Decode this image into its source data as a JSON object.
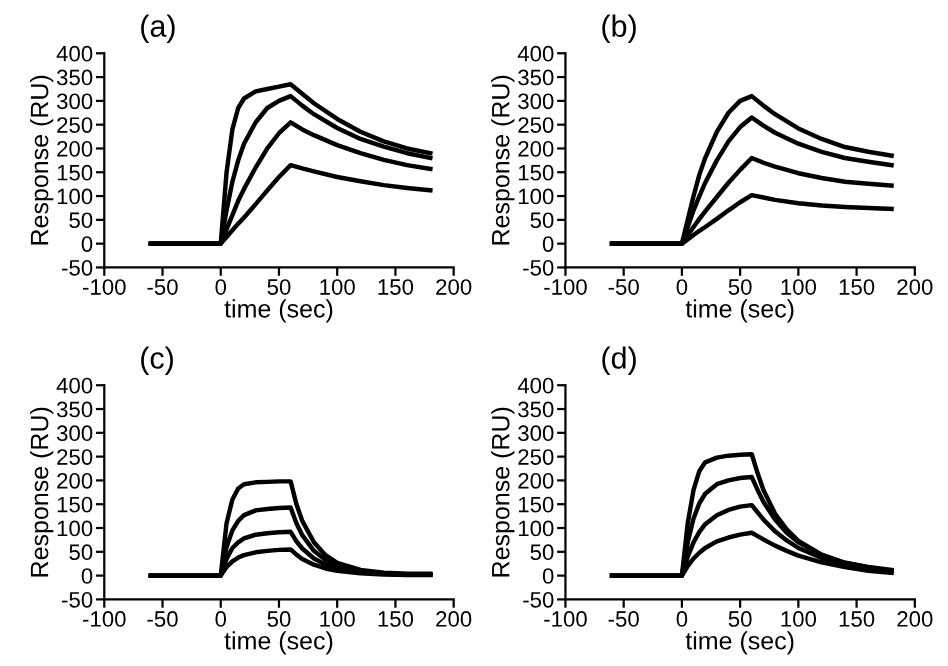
{
  "chart_data": [
    {
      "type": "line",
      "title": "(a)",
      "xlabel": "time (sec)",
      "ylabel": "Response (RU)",
      "xlim": [
        -100,
        200
      ],
      "xticks": [
        -100,
        -50,
        0,
        50,
        100,
        150,
        200
      ],
      "ylim": [
        -50,
        400
      ],
      "yticks": [
        -50,
        0,
        50,
        100,
        150,
        200,
        250,
        300,
        350,
        400
      ],
      "grid": false,
      "legend": false,
      "line_style": "solid",
      "marker": "none",
      "x": [
        -60,
        0,
        5,
        10,
        15,
        20,
        30,
        40,
        50,
        60,
        70,
        80,
        100,
        120,
        140,
        160,
        180
      ],
      "series": [
        {
          "color": "#000000",
          "values": [
            0,
            0,
            150,
            240,
            285,
            305,
            320,
            325,
            330,
            335,
            315,
            295,
            262,
            235,
            215,
            200,
            190
          ]
        },
        {
          "color": "#000000",
          "values": [
            0,
            0,
            70,
            130,
            175,
            210,
            255,
            285,
            300,
            310,
            290,
            272,
            243,
            220,
            204,
            190,
            180
          ]
        },
        {
          "color": "#000000",
          "values": [
            0,
            0,
            30,
            60,
            90,
            115,
            160,
            200,
            232,
            255,
            240,
            228,
            207,
            190,
            176,
            165,
            157
          ]
        },
        {
          "color": "#000000",
          "values": [
            0,
            0,
            14,
            28,
            42,
            55,
            83,
            112,
            140,
            165,
            158,
            152,
            140,
            131,
            123,
            117,
            112
          ]
        }
      ]
    },
    {
      "type": "line",
      "title": "(b)",
      "xlabel": "time (sec)",
      "ylabel": "Response (RU)",
      "xlim": [
        -100,
        200
      ],
      "xticks": [
        -100,
        -50,
        0,
        50,
        100,
        150,
        200
      ],
      "ylim": [
        -50,
        400
      ],
      "yticks": [
        -50,
        0,
        50,
        100,
        150,
        200,
        250,
        300,
        350,
        400
      ],
      "grid": false,
      "legend": false,
      "line_style": "solid",
      "marker": "none",
      "x": [
        -60,
        0,
        5,
        10,
        15,
        20,
        30,
        40,
        50,
        60,
        70,
        80,
        100,
        120,
        140,
        160,
        180
      ],
      "series": [
        {
          "color": "#000000",
          "values": [
            0,
            0,
            50,
            100,
            145,
            180,
            235,
            275,
            300,
            310,
            290,
            272,
            242,
            220,
            203,
            193,
            185
          ]
        },
        {
          "color": "#000000",
          "values": [
            0,
            0,
            35,
            70,
            100,
            128,
            175,
            215,
            245,
            265,
            248,
            233,
            210,
            193,
            180,
            172,
            165
          ]
        },
        {
          "color": "#000000",
          "values": [
            0,
            0,
            18,
            35,
            52,
            68,
            98,
            128,
            155,
            180,
            170,
            162,
            148,
            138,
            130,
            126,
            122
          ]
        },
        {
          "color": "#000000",
          "values": [
            0,
            0,
            9,
            18,
            27,
            35,
            52,
            70,
            87,
            102,
            97,
            92,
            85,
            80,
            77,
            75,
            73
          ]
        }
      ]
    },
    {
      "type": "line",
      "title": "(c)",
      "xlabel": "time (sec)",
      "ylabel": "Response (RU)",
      "xlim": [
        -100,
        200
      ],
      "xticks": [
        -100,
        -50,
        0,
        50,
        100,
        150,
        200
      ],
      "ylim": [
        -50,
        400
      ],
      "yticks": [
        -50,
        0,
        50,
        100,
        150,
        200,
        250,
        300,
        350,
        400
      ],
      "grid": false,
      "legend": false,
      "line_style": "solid",
      "marker": "none",
      "x": [
        -60,
        0,
        5,
        10,
        15,
        20,
        30,
        40,
        50,
        60,
        65,
        70,
        80,
        90,
        100,
        120,
        140,
        160,
        180
      ],
      "series": [
        {
          "color": "#000000",
          "values": [
            0,
            0,
            110,
            160,
            183,
            192,
            196,
            197,
            198,
            198,
            150,
            115,
            70,
            43,
            27,
            12,
            6,
            4,
            4
          ]
        },
        {
          "color": "#000000",
          "values": [
            0,
            0,
            60,
            95,
            115,
            127,
            137,
            140,
            142,
            143,
            110,
            85,
            52,
            33,
            21,
            10,
            5,
            3,
            3
          ]
        },
        {
          "color": "#000000",
          "values": [
            0,
            0,
            35,
            58,
            70,
            78,
            86,
            89,
            91,
            92,
            72,
            57,
            36,
            23,
            15,
            7,
            4,
            2,
            2
          ]
        },
        {
          "color": "#000000",
          "values": [
            0,
            0,
            18,
            30,
            38,
            43,
            49,
            52,
            54,
            55,
            44,
            35,
            23,
            15,
            10,
            5,
            2,
            1,
            1
          ]
        }
      ]
    },
    {
      "type": "line",
      "title": "(d)",
      "xlabel": "time (sec)",
      "ylabel": "Response (RU)",
      "xlim": [
        -100,
        200
      ],
      "xticks": [
        -100,
        -50,
        0,
        50,
        100,
        150,
        200
      ],
      "ylim": [
        -50,
        400
      ],
      "yticks": [
        -50,
        0,
        50,
        100,
        150,
        200,
        250,
        300,
        350,
        400
      ],
      "grid": false,
      "legend": false,
      "line_style": "solid",
      "marker": "none",
      "x": [
        -60,
        0,
        5,
        10,
        15,
        20,
        30,
        40,
        50,
        60,
        65,
        70,
        80,
        90,
        100,
        120,
        140,
        160,
        180
      ],
      "series": [
        {
          "color": "#000000",
          "values": [
            0,
            0,
            110,
            180,
            220,
            238,
            248,
            252,
            254,
            255,
            215,
            180,
            130,
            97,
            73,
            44,
            27,
            18,
            12
          ]
        },
        {
          "color": "#000000",
          "values": [
            0,
            0,
            70,
            120,
            152,
            172,
            192,
            200,
            205,
            207,
            180,
            155,
            118,
            90,
            70,
            43,
            27,
            17,
            10
          ]
        },
        {
          "color": "#000000",
          "values": [
            0,
            0,
            40,
            70,
            92,
            108,
            127,
            138,
            145,
            148,
            133,
            118,
            93,
            74,
            58,
            37,
            23,
            14,
            8
          ]
        },
        {
          "color": "#000000",
          "values": [
            0,
            0,
            20,
            36,
            48,
            58,
            72,
            80,
            86,
            90,
            83,
            76,
            63,
            52,
            42,
            28,
            18,
            10,
            6
          ]
        }
      ]
    }
  ]
}
